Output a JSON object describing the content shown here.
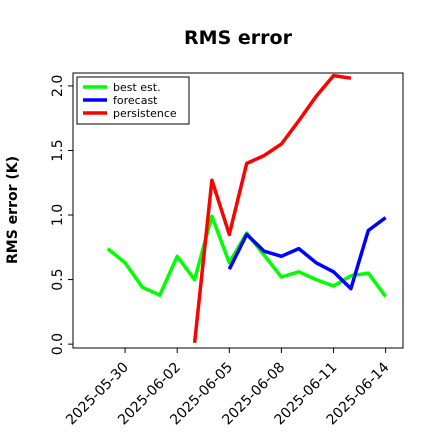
{
  "chart_data": {
    "type": "line",
    "title": "RMS error",
    "xlabel": "",
    "ylabel": "RMS error (K)",
    "ylim": [
      -0.03,
      2.1
    ],
    "yticks": [
      0.0,
      0.5,
      1.0,
      1.5,
      2.0
    ],
    "ytick_labels": [
      "0.0",
      "0.5",
      "1.0",
      "1.5",
      "2.0"
    ],
    "xlim": [
      "2025-05-27",
      "2025-06-15"
    ],
    "xticks": [
      "2025-05-30",
      "2025-06-02",
      "2025-06-05",
      "2025-06-08",
      "2025-06-11",
      "2025-06-14"
    ],
    "xtick_labels": [
      "2025-05-30",
      "2025-06-02",
      "2025-06-05",
      "2025-06-08",
      "2025-06-11",
      "2025-06-14"
    ],
    "xtick_colors": [
      "#000000",
      "#000000",
      "#008000",
      "#000000",
      "#000000",
      "#000000"
    ],
    "legend_position": "top-left",
    "grid": false,
    "series": [
      {
        "name": "best est.",
        "color": "#00ff00",
        "points": [
          [
            "2025-05-29",
            0.74
          ],
          [
            "2025-05-30",
            0.63
          ],
          [
            "2025-05-31",
            0.44
          ],
          [
            "2025-06-01",
            0.38
          ],
          [
            "2025-06-02",
            0.68
          ],
          [
            "2025-06-03",
            0.5
          ],
          [
            "2025-06-04",
            0.99
          ],
          [
            "2025-06-05",
            0.63
          ],
          [
            "2025-06-06",
            0.86
          ],
          [
            "2025-06-07",
            0.69
          ],
          [
            "2025-06-08",
            0.52
          ],
          [
            "2025-06-09",
            0.56
          ],
          [
            "2025-06-10",
            0.5
          ],
          [
            "2025-06-11",
            0.45
          ],
          [
            "2025-06-12",
            0.53
          ],
          [
            "2025-06-13",
            0.55
          ],
          [
            "2025-06-14",
            0.37
          ]
        ]
      },
      {
        "name": "forecast",
        "color": "#0000ff",
        "points": [
          [
            "2025-06-05",
            0.58
          ],
          [
            "2025-06-06",
            0.85
          ],
          [
            "2025-06-07",
            0.72
          ],
          [
            "2025-06-08",
            0.68
          ],
          [
            "2025-06-09",
            0.74
          ],
          [
            "2025-06-10",
            0.63
          ],
          [
            "2025-06-11",
            0.56
          ],
          [
            "2025-06-12",
            0.43
          ],
          [
            "2025-06-13",
            0.88
          ],
          [
            "2025-06-14",
            0.98
          ]
        ]
      },
      {
        "name": "persistence",
        "color": "#ff0000",
        "points": [
          [
            "2025-06-03",
            0.01
          ],
          [
            "2025-06-04",
            1.27
          ],
          [
            "2025-06-05",
            0.85
          ],
          [
            "2025-06-06",
            1.4
          ],
          [
            "2025-06-07",
            1.46
          ],
          [
            "2025-06-08",
            1.55
          ],
          [
            "2025-06-09",
            1.73
          ],
          [
            "2025-06-10",
            1.92
          ],
          [
            "2025-06-11",
            2.08
          ],
          [
            "2025-06-12",
            2.06
          ]
        ]
      }
    ]
  }
}
